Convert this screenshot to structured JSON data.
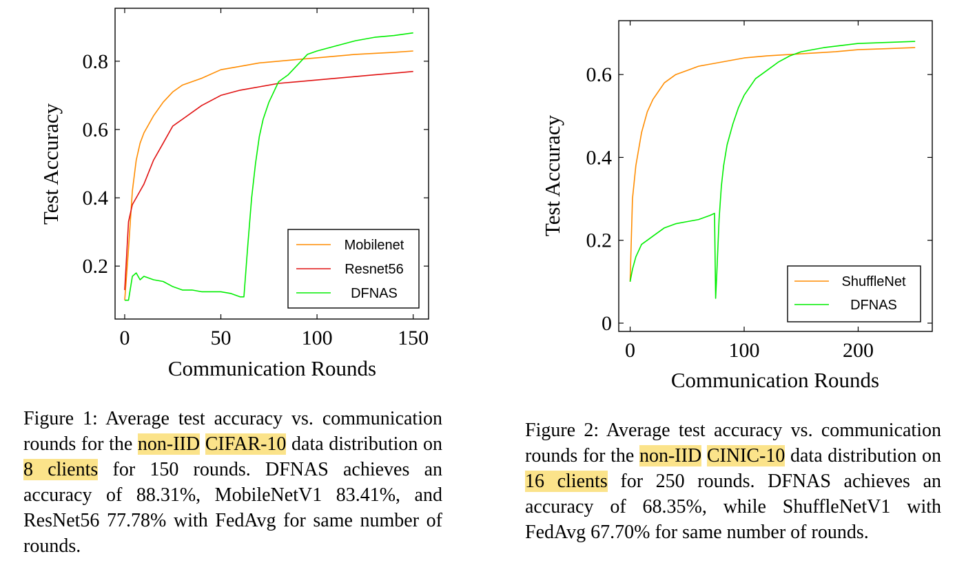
{
  "charts": [
    {
      "xlabel": "Communication Rounds",
      "ylabel": "Test Accuracy",
      "xticks": [
        0,
        50,
        100,
        150
      ],
      "yticks": [
        0.2,
        0.4,
        0.6,
        0.8
      ],
      "legend": [
        "Mobilenet",
        "Resnet56",
        "DFNAS"
      ]
    },
    {
      "xlabel": "Communication Rounds",
      "ylabel": "Test Accuracy",
      "xticks": [
        0,
        100,
        200
      ],
      "yticks": [
        0,
        0.2,
        0.4,
        0.6
      ],
      "legend": [
        "ShuffleNet",
        "DFNAS"
      ]
    }
  ],
  "captions": [
    {
      "parts": [
        "Figure 1: Average test accuracy vs. communication rounds for the ",
        "non-IID",
        " ",
        "CIFAR-10",
        " data distribution on ",
        "8 clients",
        " for 150 rounds. DFNAS achieves an accuracy of 88.31%, MobileNetV1 83.41%, and ResNet56 77.78% with FedAvg for same number of rounds."
      ]
    },
    {
      "parts": [
        "Figure 2: Average test accuracy vs. communication rounds for the ",
        "non-IID",
        " ",
        "CINIC-10",
        " data distribution on ",
        "16 clients",
        " for 250 rounds. DFNAS achieves an accuracy of 68.35%, while ShuffleNetV1 with FedAvg 67.70% for same number of rounds."
      ]
    }
  ],
  "chart_data": [
    {
      "type": "line",
      "xlabel": "Communication Rounds",
      "ylabel": "Test Accuracy",
      "xlim": [
        -5,
        158
      ],
      "ylim": [
        0.045,
        0.955
      ],
      "grid": false,
      "legend_position": "bottom-right",
      "colors": {
        "Mobilenet": "#ff8c00",
        "Resnet56": "#e01010",
        "DFNAS": "#00ee00"
      },
      "series": [
        {
          "name": "Mobilenet",
          "x": [
            0,
            2,
            4,
            6,
            8,
            10,
            15,
            20,
            25,
            30,
            40,
            50,
            60,
            70,
            80,
            90,
            100,
            110,
            120,
            130,
            140,
            150
          ],
          "y": [
            0.1,
            0.25,
            0.42,
            0.51,
            0.56,
            0.59,
            0.64,
            0.68,
            0.71,
            0.73,
            0.75,
            0.775,
            0.785,
            0.795,
            0.8,
            0.805,
            0.81,
            0.815,
            0.82,
            0.823,
            0.826,
            0.83
          ]
        },
        {
          "name": "Resnet56",
          "x": [
            0,
            2,
            4,
            6,
            8,
            10,
            15,
            20,
            25,
            30,
            40,
            50,
            60,
            70,
            80,
            90,
            100,
            110,
            120,
            130,
            140,
            150
          ],
          "y": [
            0.13,
            0.33,
            0.38,
            0.4,
            0.42,
            0.44,
            0.51,
            0.56,
            0.61,
            0.63,
            0.67,
            0.7,
            0.715,
            0.725,
            0.735,
            0.74,
            0.745,
            0.75,
            0.755,
            0.76,
            0.765,
            0.77
          ]
        },
        {
          "name": "DFNAS",
          "x": [
            0,
            2,
            4,
            6,
            8,
            10,
            15,
            20,
            25,
            30,
            35,
            40,
            45,
            50,
            55,
            60,
            62,
            64,
            66,
            68,
            70,
            72,
            75,
            80,
            85,
            90,
            95,
            100,
            110,
            120,
            130,
            140,
            150
          ],
          "y": [
            0.1,
            0.1,
            0.17,
            0.18,
            0.16,
            0.17,
            0.16,
            0.155,
            0.14,
            0.13,
            0.13,
            0.125,
            0.125,
            0.125,
            0.12,
            0.11,
            0.11,
            0.26,
            0.4,
            0.5,
            0.58,
            0.63,
            0.68,
            0.74,
            0.76,
            0.79,
            0.82,
            0.83,
            0.845,
            0.86,
            0.87,
            0.875,
            0.883
          ]
        }
      ]
    },
    {
      "type": "line",
      "xlabel": "Communication Rounds",
      "ylabel": "Test Accuracy",
      "xlim": [
        -10,
        265
      ],
      "ylim": [
        -0.02,
        0.73
      ],
      "grid": false,
      "legend_position": "bottom-right",
      "colors": {
        "ShuffleNet": "#ff8c00",
        "DFNAS": "#00ee00"
      },
      "series": [
        {
          "name": "ShuffleNet",
          "x": [
            0,
            2,
            5,
            10,
            15,
            20,
            30,
            40,
            50,
            60,
            70,
            80,
            100,
            120,
            150,
            180,
            200,
            220,
            250
          ],
          "y": [
            0.1,
            0.3,
            0.38,
            0.46,
            0.51,
            0.54,
            0.58,
            0.6,
            0.61,
            0.62,
            0.625,
            0.63,
            0.64,
            0.645,
            0.65,
            0.655,
            0.66,
            0.662,
            0.665
          ]
        },
        {
          "name": "DFNAS",
          "x": [
            0,
            2,
            5,
            10,
            15,
            20,
            30,
            40,
            50,
            60,
            70,
            74,
            75,
            76,
            78,
            80,
            82,
            85,
            90,
            95,
            100,
            110,
            120,
            130,
            140,
            150,
            170,
            200,
            230,
            250
          ],
          "y": [
            0.1,
            0.13,
            0.16,
            0.19,
            0.2,
            0.21,
            0.23,
            0.24,
            0.245,
            0.25,
            0.26,
            0.265,
            0.06,
            0.12,
            0.25,
            0.33,
            0.38,
            0.43,
            0.48,
            0.52,
            0.55,
            0.59,
            0.61,
            0.63,
            0.645,
            0.655,
            0.665,
            0.675,
            0.678,
            0.68
          ]
        }
      ]
    }
  ]
}
